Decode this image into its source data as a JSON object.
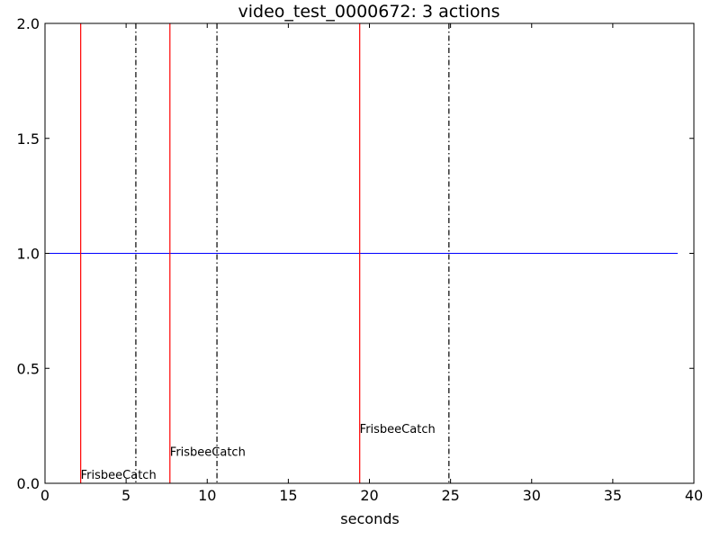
{
  "chart_data": {
    "type": "line",
    "title": "video_test_0000672: 3 actions",
    "xlabel": "seconds",
    "ylabel": "",
    "xlim": [
      0,
      40
    ],
    "ylim": [
      0,
      2.0
    ],
    "x_ticks": [
      0,
      5,
      10,
      15,
      20,
      25,
      30,
      35,
      40
    ],
    "x_tick_labels": [
      "0",
      "5",
      "10",
      "15",
      "20",
      "25",
      "30",
      "35",
      "40"
    ],
    "y_ticks": [
      0.0,
      0.5,
      1.0,
      1.5,
      2.0
    ],
    "y_tick_labels": [
      "0.0",
      "0.5",
      "1.0",
      "1.5",
      "2.0"
    ],
    "grid": false,
    "series": [
      {
        "x": [
          0,
          39
        ],
        "y": [
          1.0,
          1.0
        ],
        "color": "#0000ff"
      }
    ],
    "actions": [
      {
        "label": "FrisbeeCatch",
        "start": 2.2,
        "end": 5.6,
        "label_y": 0.02
      },
      {
        "label": "FrisbeeCatch",
        "start": 7.7,
        "end": 10.6,
        "label_y": 0.12
      },
      {
        "label": "FrisbeeCatch",
        "start": 19.4,
        "end": 24.9,
        "label_y": 0.22
      }
    ],
    "colors": {
      "start_line": "#ff0000",
      "end_line": "#000000",
      "series": "#0000ff"
    }
  }
}
